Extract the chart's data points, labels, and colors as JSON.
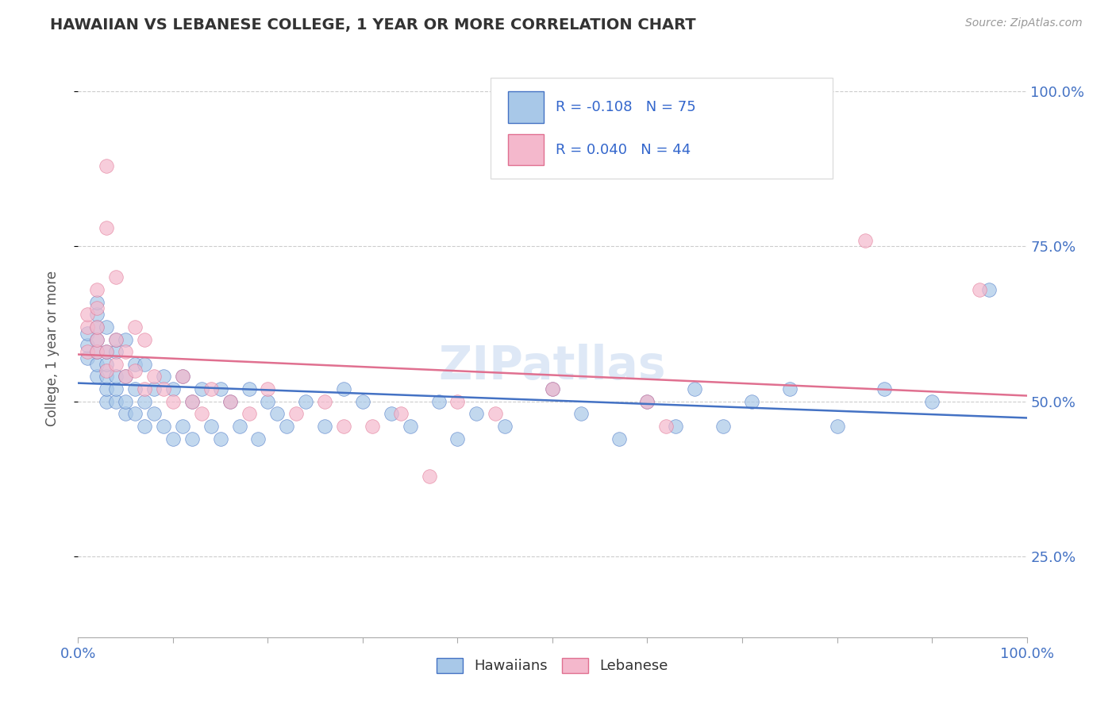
{
  "title": "HAWAIIAN VS LEBANESE COLLEGE, 1 YEAR OR MORE CORRELATION CHART",
  "source_text": "Source: ZipAtlas.com",
  "ylabel": "College, 1 year or more",
  "yticks": [
    "25.0%",
    "50.0%",
    "75.0%",
    "100.0%"
  ],
  "ytick_values": [
    0.25,
    0.5,
    0.75,
    1.0
  ],
  "r_hawaiian": "-0.108",
  "n_hawaiian": "75",
  "r_lebanese": "0.040",
  "n_lebanese": "44",
  "legend_labels": [
    "Hawaiians",
    "Lebanese"
  ],
  "color_hawaiian": "#a8c8e8",
  "color_lebanese": "#f4b8cc",
  "trendline_hawaiian": "#4472c4",
  "trendline_lebanese": "#e07090",
  "background_color": "#ffffff",
  "watermark": "ZIPatllas",
  "hawaiian_x": [
    0.01,
    0.01,
    0.01,
    0.02,
    0.02,
    0.02,
    0.02,
    0.02,
    0.02,
    0.02,
    0.03,
    0.03,
    0.03,
    0.03,
    0.03,
    0.03,
    0.04,
    0.04,
    0.04,
    0.04,
    0.04,
    0.05,
    0.05,
    0.05,
    0.05,
    0.06,
    0.06,
    0.06,
    0.07,
    0.07,
    0.07,
    0.08,
    0.08,
    0.09,
    0.09,
    0.1,
    0.1,
    0.11,
    0.11,
    0.12,
    0.12,
    0.13,
    0.14,
    0.15,
    0.15,
    0.16,
    0.17,
    0.18,
    0.19,
    0.2,
    0.21,
    0.22,
    0.24,
    0.26,
    0.28,
    0.3,
    0.33,
    0.35,
    0.38,
    0.4,
    0.42,
    0.45,
    0.5,
    0.53,
    0.57,
    0.6,
    0.63,
    0.65,
    0.68,
    0.71,
    0.75,
    0.8,
    0.85,
    0.9,
    0.96
  ],
  "hawaiian_y": [
    0.57,
    0.59,
    0.61,
    0.54,
    0.56,
    0.58,
    0.6,
    0.62,
    0.64,
    0.66,
    0.5,
    0.52,
    0.54,
    0.56,
    0.58,
    0.62,
    0.5,
    0.52,
    0.54,
    0.58,
    0.6,
    0.48,
    0.5,
    0.54,
    0.6,
    0.48,
    0.52,
    0.56,
    0.46,
    0.5,
    0.56,
    0.48,
    0.52,
    0.46,
    0.54,
    0.44,
    0.52,
    0.46,
    0.54,
    0.44,
    0.5,
    0.52,
    0.46,
    0.44,
    0.52,
    0.5,
    0.46,
    0.52,
    0.44,
    0.5,
    0.48,
    0.46,
    0.5,
    0.46,
    0.52,
    0.5,
    0.48,
    0.46,
    0.5,
    0.44,
    0.48,
    0.46,
    0.52,
    0.48,
    0.44,
    0.5,
    0.46,
    0.52,
    0.46,
    0.5,
    0.52,
    0.46,
    0.52,
    0.5,
    0.68
  ],
  "lebanese_x": [
    0.01,
    0.01,
    0.01,
    0.02,
    0.02,
    0.02,
    0.02,
    0.02,
    0.03,
    0.03,
    0.03,
    0.03,
    0.04,
    0.04,
    0.04,
    0.05,
    0.05,
    0.06,
    0.06,
    0.07,
    0.07,
    0.08,
    0.09,
    0.1,
    0.11,
    0.12,
    0.13,
    0.14,
    0.16,
    0.18,
    0.2,
    0.23,
    0.26,
    0.28,
    0.31,
    0.34,
    0.37,
    0.4,
    0.44,
    0.5,
    0.6,
    0.62,
    0.83,
    0.95
  ],
  "lebanese_y": [
    0.58,
    0.62,
    0.64,
    0.58,
    0.6,
    0.62,
    0.65,
    0.68,
    0.55,
    0.58,
    0.78,
    0.88,
    0.56,
    0.6,
    0.7,
    0.54,
    0.58,
    0.55,
    0.62,
    0.52,
    0.6,
    0.54,
    0.52,
    0.5,
    0.54,
    0.5,
    0.48,
    0.52,
    0.5,
    0.48,
    0.52,
    0.48,
    0.5,
    0.46,
    0.46,
    0.48,
    0.38,
    0.5,
    0.48,
    0.52,
    0.5,
    0.46,
    0.76,
    0.68
  ]
}
